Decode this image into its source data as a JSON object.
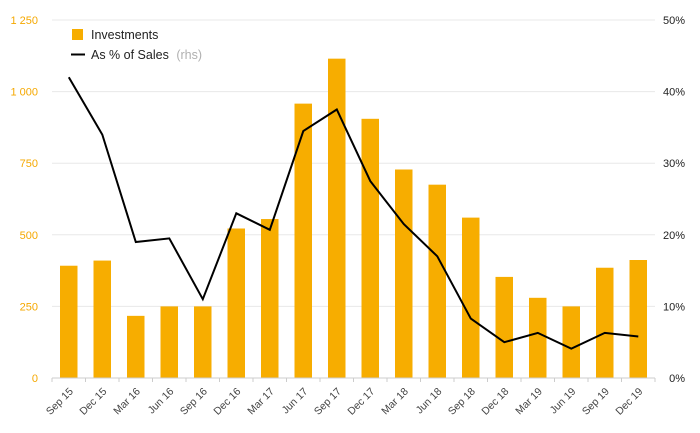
{
  "chart_data": {
    "type": "bar",
    "categories": [
      "Sep 15",
      "Dec 15",
      "Mar 16",
      "Jun 16",
      "Sep 16",
      "Dec 16",
      "Mar 17",
      "Jun 17",
      "Sep 17",
      "Dec 17",
      "Mar 18",
      "Jun 18",
      "Sep 18",
      "Dec 18",
      "Mar 19",
      "Jun 19",
      "Sep 19",
      "Dec 19"
    ],
    "series": [
      {
        "name": "Investments",
        "type": "bar",
        "axis": "left",
        "color": "#f7ad00",
        "values": [
          392,
          410,
          217,
          250,
          250,
          522,
          555,
          958,
          1115,
          905,
          728,
          675,
          560,
          353,
          280,
          250,
          385,
          412
        ]
      },
      {
        "name": "As % of Sales",
        "type": "line",
        "axis": "right",
        "color": "#000000",
        "values": [
          42.0,
          34.0,
          19.0,
          19.5,
          11.0,
          23.0,
          20.7,
          34.5,
          37.5,
          27.5,
          21.5,
          17.0,
          8.3,
          5.0,
          6.3,
          4.1,
          6.3,
          5.8
        ]
      }
    ],
    "y_left": {
      "min": 0,
      "max": 1250,
      "ticks": [
        0,
        250,
        500,
        750,
        1000,
        1250
      ],
      "tick_labels": [
        "0",
        "250",
        "500",
        "750",
        "1 000",
        "1 250"
      ]
    },
    "y_right": {
      "min": 0,
      "max": 50,
      "ticks": [
        0,
        10,
        20,
        30,
        40,
        50
      ],
      "tick_labels": [
        "0%",
        "10%",
        "20%",
        "30%",
        "40%",
        "50%"
      ]
    },
    "legend": {
      "position": "top-left",
      "items": [
        {
          "label": "Investments",
          "sub": ""
        },
        {
          "label": "As % of Sales",
          "sub": "(rhs)"
        }
      ]
    },
    "grid": true,
    "colors": {
      "left_axis": "#f5a800",
      "grid": "#e8e8e8"
    }
  }
}
